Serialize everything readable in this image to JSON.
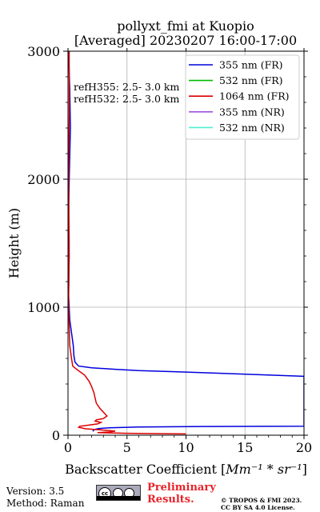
{
  "title_line1": "pollyxt_fmi at Kuopio",
  "title_line2": "[Averaged] 20230207 16:00-17:00",
  "chart_data": {
    "type": "line",
    "xlabel_prefix": "Backscatter Coefficient [",
    "xlabel_unit": "Mm⁻¹ * sr⁻¹",
    "xlabel_suffix": "]",
    "ylabel": "Height (m)",
    "xlim": [
      0,
      20
    ],
    "ylim": [
      0,
      3000
    ],
    "xticks": [
      0,
      5,
      10,
      15,
      20
    ],
    "yticks": [
      0,
      1000,
      2000,
      3000
    ],
    "grid": true,
    "legend_position": "top-right",
    "annotations": [
      "refH355:  2.5- 3.0 km",
      "refH532:  2.5- 3.0 km"
    ],
    "series": [
      {
        "name": "355 nm (FR)",
        "color": "#0000dd",
        "points": [
          [
            0.05,
            3000
          ],
          [
            0.15,
            2700
          ],
          [
            0.2,
            2400
          ],
          [
            0.1,
            2000
          ],
          [
            0.05,
            1700
          ],
          [
            0.1,
            1400
          ],
          [
            0.05,
            1100
          ],
          [
            0.15,
            900
          ],
          [
            0.3,
            800
          ],
          [
            0.45,
            700
          ],
          [
            0.5,
            620
          ],
          [
            0.6,
            570
          ],
          [
            0.9,
            540
          ],
          [
            2.0,
            527
          ],
          [
            4.0,
            515
          ],
          [
            6.0,
            505
          ],
          [
            9.0,
            496
          ],
          [
            12.0,
            487
          ],
          [
            16.0,
            474
          ],
          [
            20.0,
            460
          ],
          [
            20.0,
            70
          ],
          [
            12.0,
            68
          ],
          [
            6.0,
            64
          ],
          [
            3.5,
            58
          ],
          [
            2.6,
            52
          ],
          [
            2.2,
            43
          ],
          [
            2.1,
            30
          ]
        ]
      },
      {
        "name": "532 nm (FR)",
        "color": "#00bb00",
        "points": []
      },
      {
        "name": "1064 nm (FR)",
        "color": "#dd0000",
        "points": [
          [
            0.1,
            3000
          ],
          [
            0.1,
            2500
          ],
          [
            0.05,
            2000
          ],
          [
            0.1,
            1500
          ],
          [
            0.05,
            1000
          ],
          [
            0.15,
            700
          ],
          [
            0.3,
            600
          ],
          [
            0.4,
            540
          ],
          [
            0.8,
            510
          ],
          [
            1.4,
            470
          ],
          [
            1.8,
            420
          ],
          [
            2.0,
            380
          ],
          [
            2.2,
            330
          ],
          [
            2.3,
            290
          ],
          [
            2.4,
            250
          ],
          [
            2.7,
            210
          ],
          [
            3.1,
            170
          ],
          [
            3.3,
            150
          ],
          [
            3.0,
            130
          ],
          [
            2.4,
            120
          ],
          [
            2.3,
            110
          ],
          [
            2.8,
            100
          ],
          [
            2.5,
            88
          ],
          [
            1.7,
            78
          ],
          [
            1.0,
            70
          ],
          [
            0.9,
            62
          ],
          [
            1.5,
            50
          ],
          [
            3.0,
            40
          ],
          [
            4.0,
            32
          ],
          [
            3.5,
            25
          ],
          [
            2.5,
            20
          ],
          [
            5.0,
            15
          ],
          [
            8.0,
            12
          ],
          [
            10.0,
            10
          ]
        ]
      },
      {
        "name": "355 nm (NR)",
        "color": "#a050e0",
        "points": []
      },
      {
        "name": "532 nm (NR)",
        "color": "#50f0d0",
        "points": []
      }
    ]
  },
  "footer": {
    "version": "Version: 3.5",
    "method": "Method: Raman",
    "prelim_line1": "Preliminary",
    "prelim_line2": "Results.",
    "copyright_line1": "© TROPOS & FMI 2023.",
    "copyright_line2": "CC BY SA 4.0 License."
  }
}
